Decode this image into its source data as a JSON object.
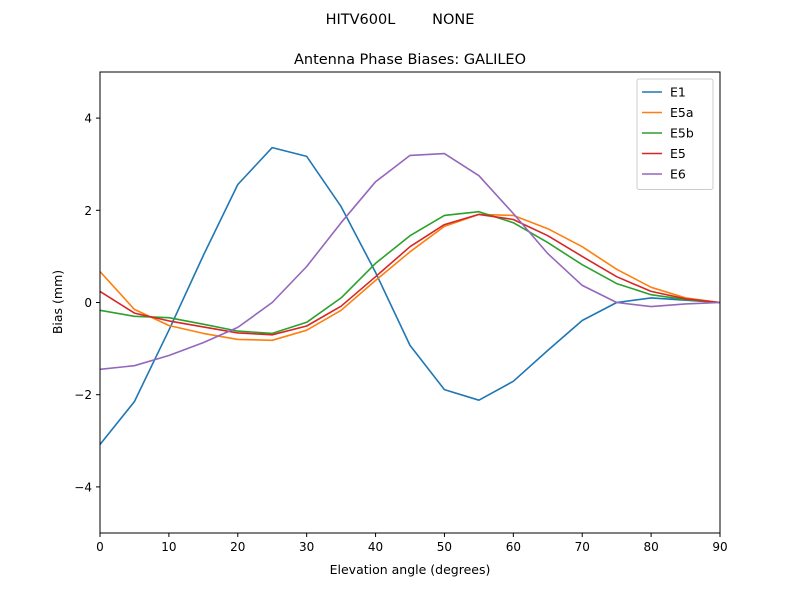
{
  "chart_data": {
    "type": "line",
    "suptitle": "HITV600L        NONE",
    "title": "Antenna Phase Biases: GALILEO",
    "xlabel": "Elevation angle (degrees)",
    "ylabel": "Bias (mm)",
    "xlim": [
      0,
      90
    ],
    "ylim": [
      -5,
      5
    ],
    "xticks": [
      0,
      10,
      20,
      30,
      40,
      50,
      60,
      70,
      80,
      90
    ],
    "yticks": [
      -4,
      -2,
      0,
      2,
      4
    ],
    "ytick_labels": [
      "−4",
      "−2",
      "0",
      "2",
      "4"
    ],
    "grid": false,
    "legend_position": "top-right",
    "x": [
      0,
      5,
      10,
      15,
      20,
      25,
      30,
      35,
      40,
      45,
      50,
      55,
      60,
      65,
      70,
      75,
      80,
      85,
      90
    ],
    "series": [
      {
        "name": "E1",
        "color": "#1f77b4",
        "values": [
          -3.08,
          -2.15,
          -0.6,
          1.02,
          2.56,
          3.36,
          3.17,
          2.08,
          0.65,
          -0.93,
          -1.89,
          -2.12,
          -1.71,
          -1.04,
          -0.39,
          0.0,
          0.1,
          0.05,
          0.0
        ]
      },
      {
        "name": "E5a",
        "color": "#ff7f0e",
        "values": [
          0.67,
          -0.15,
          -0.5,
          -0.67,
          -0.8,
          -0.82,
          -0.6,
          -0.17,
          0.48,
          1.1,
          1.65,
          1.91,
          1.89,
          1.6,
          1.21,
          0.72,
          0.33,
          0.1,
          0.0
        ]
      },
      {
        "name": "E5b",
        "color": "#2ca02c",
        "values": [
          -0.17,
          -0.3,
          -0.33,
          -0.47,
          -0.62,
          -0.67,
          -0.43,
          0.1,
          0.85,
          1.45,
          1.89,
          1.97,
          1.73,
          1.3,
          0.82,
          0.41,
          0.17,
          0.06,
          0.0
        ]
      },
      {
        "name": "E5",
        "color": "#d62728",
        "values": [
          0.24,
          -0.23,
          -0.4,
          -0.53,
          -0.66,
          -0.7,
          -0.51,
          -0.08,
          0.56,
          1.21,
          1.69,
          1.91,
          1.8,
          1.45,
          1.0,
          0.56,
          0.24,
          0.08,
          0.0
        ]
      },
      {
        "name": "E6",
        "color": "#9467bd",
        "values": [
          -1.45,
          -1.37,
          -1.15,
          -0.87,
          -0.54,
          0.0,
          0.78,
          1.73,
          2.62,
          3.19,
          3.23,
          2.75,
          1.93,
          1.06,
          0.37,
          0.0,
          -0.09,
          -0.03,
          0.0
        ]
      }
    ]
  }
}
